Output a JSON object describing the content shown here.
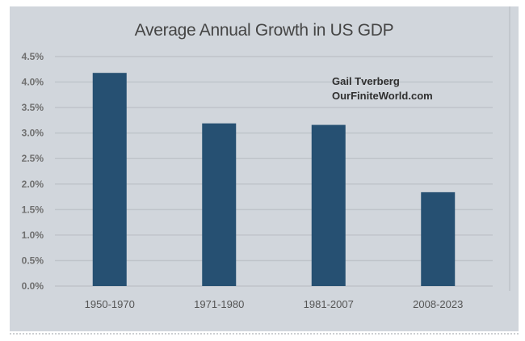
{
  "chart_data": {
    "type": "bar",
    "title": "Average Annual Growth in US GDP",
    "xlabel": "",
    "ylabel": "",
    "categories": [
      "1950-1970",
      "1971-1980",
      "1981-2007",
      "2008-2023"
    ],
    "values": [
      4.18,
      3.19,
      3.16,
      1.84
    ],
    "value_unit": "%",
    "ylim": [
      0,
      4.5
    ],
    "yticks": [
      0.0,
      0.5,
      1.0,
      1.5,
      2.0,
      2.5,
      3.0,
      3.5,
      4.0,
      4.5
    ],
    "ytick_labels": [
      "0.0%",
      "0.5%",
      "1.0%",
      "1.5%",
      "2.0%",
      "2.5%",
      "3.0%",
      "3.5%",
      "4.0%",
      "4.5%"
    ],
    "grid": true,
    "legend": null,
    "bar_color": "#265072",
    "annotations": [
      "Gail Tverberg",
      "OurFiniteWorld.com"
    ]
  }
}
